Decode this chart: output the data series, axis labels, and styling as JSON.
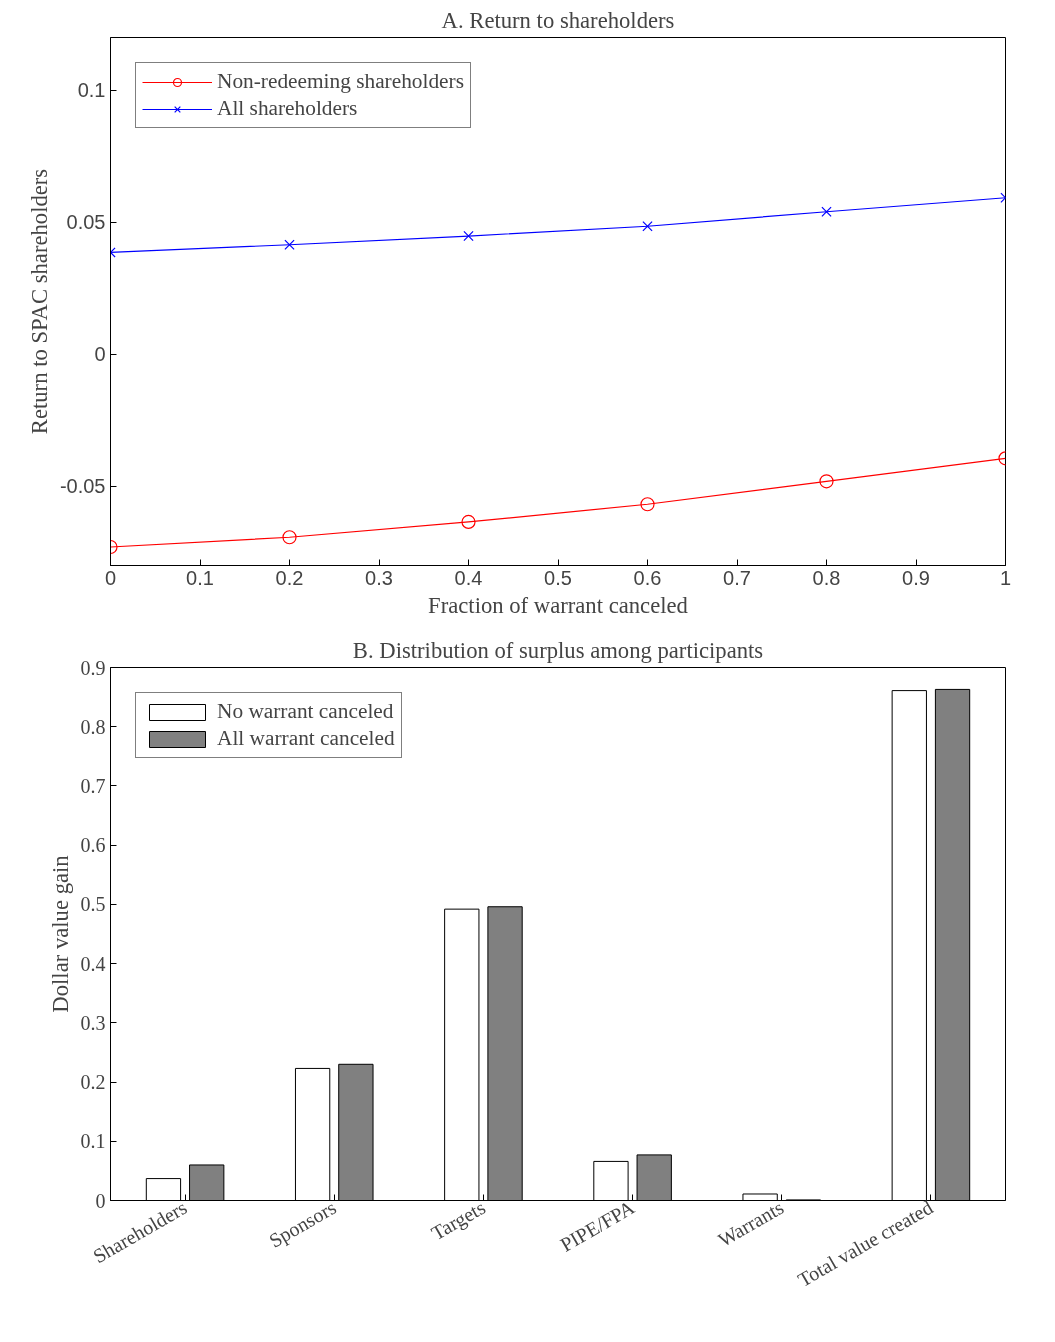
{
  "chart_data": [
    {
      "type": "line",
      "title": "A. Return to shareholders",
      "xlabel": "Fraction of warrant canceled",
      "ylabel": "Return to SPAC shareholders",
      "x": [
        0,
        0.2,
        0.4,
        0.6,
        0.8,
        1
      ],
      "series": [
        {
          "name": "Non-redeeming shareholders",
          "color": "#ff0000",
          "marker": "circle",
          "values": [
            -0.073,
            -0.0693,
            -0.0635,
            -0.0568,
            -0.0481,
            -0.0394
          ]
        },
        {
          "name": "All shareholders",
          "color": "#0000ff",
          "marker": "cross",
          "values": [
            0.0386,
            0.0415,
            0.0448,
            0.0485,
            0.054,
            0.0593
          ]
        }
      ],
      "xlim": [
        0,
        1
      ],
      "xticks": [
        0,
        0.1,
        0.2,
        0.3,
        0.4,
        0.5,
        0.6,
        0.7,
        0.8,
        0.9,
        1
      ],
      "ylim": [
        -0.08,
        0.12
      ],
      "yticks": [
        -0.05,
        0,
        0.05,
        0.1
      ],
      "grid": false,
      "legend": "top left",
      "line_style": "solid"
    },
    {
      "type": "bar",
      "title": "B. Distribution of surplus among participants",
      "ylabel": "Dollar value gain",
      "categories": [
        "Shareholders",
        "Sponsors",
        "Targets",
        "PIPE/FPA",
        "Warrants",
        "Total value created"
      ],
      "series": [
        {
          "name": "No warrant canceled",
          "color": "#ffffff",
          "values": [
            0.037,
            0.223,
            0.492,
            0.066,
            0.011,
            0.861
          ]
        },
        {
          "name": "All warrant canceled",
          "color": "#808080",
          "values": [
            0.06,
            0.23,
            0.496,
            0.077,
            0.001,
            0.863
          ]
        }
      ],
      "ylim": [
        0,
        0.9
      ],
      "yticks": [
        0,
        0.1,
        0.2,
        0.3,
        0.4,
        0.5,
        0.6,
        0.7,
        0.8,
        0.9
      ],
      "grid": false,
      "legend": "top left"
    }
  ]
}
